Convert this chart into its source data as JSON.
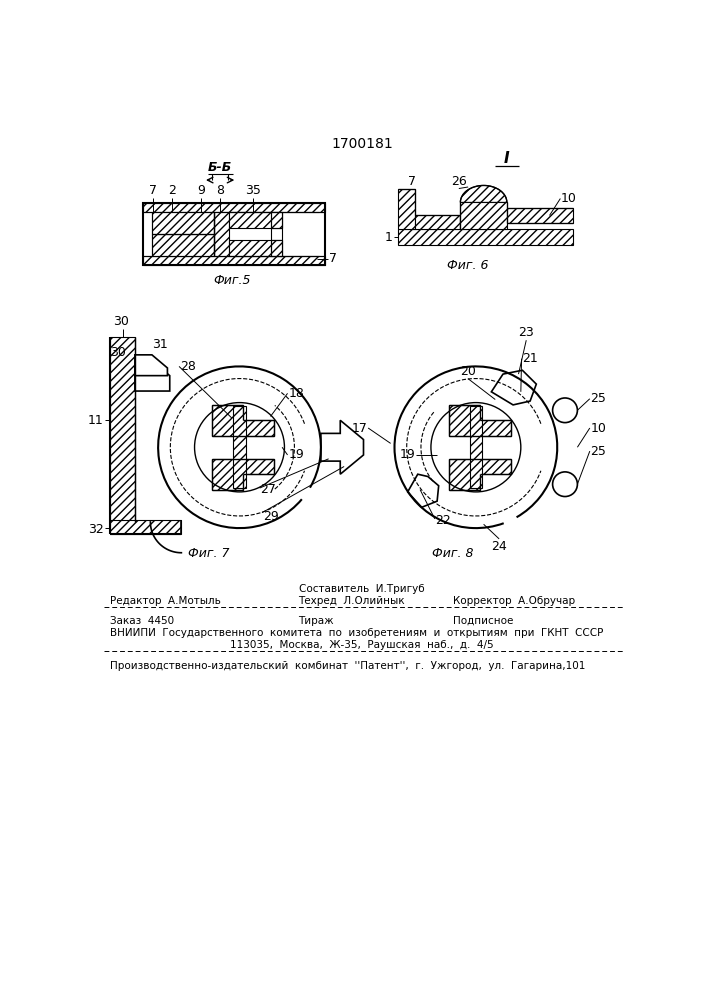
{
  "title": "1700181",
  "bg_color": "#ffffff",
  "fig5_label": "Фиг.5",
  "fig6_label": "Фиг. 6",
  "fig7_label": "Фиг. 7",
  "fig8_label": "Фиг. 8",
  "section_label": "Б-Б",
  "view_label": "I",
  "footer_line1": "Составитель  И.Тригуб",
  "footer_line2_left": "Редактор  А.Мотыль",
  "footer_line2_mid": "Техред  Л.Олийнык",
  "footer_line2_right": "Корректор  А.Обручар",
  "footer_line3_left": "Заказ  4450",
  "footer_line3_mid": "Тираж",
  "footer_line3_right": "Подписное",
  "footer_line4": "ВНИИПИ  Государственного  комитета  по  изобретениям  и  открытиям  при  ГКНТ  СССР",
  "footer_line5": "113035,  Москва,  Ж-35,  Раушская  наб.,  д.  4/5",
  "footer_line6": "Производственно-издательский  комбинат  ''Патент'',  г.  Ужгород,  ул.  Гагарина,101"
}
